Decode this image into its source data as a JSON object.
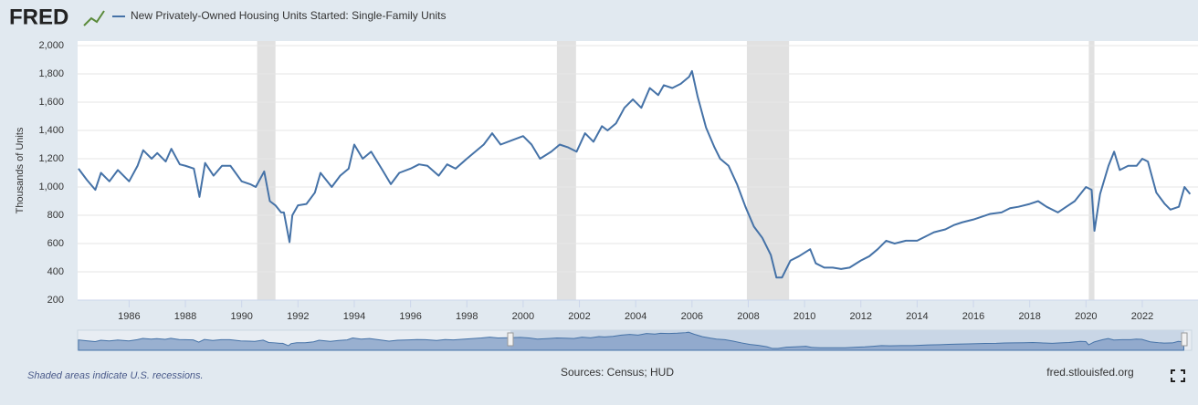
{
  "logo": "FRED",
  "chart_data": {
    "type": "line",
    "title": "New Privately-Owned Housing Units Started: Single-Family Units",
    "y_label": "Thousands of Units",
    "note": "Shaded areas indicate U.S. recessions.",
    "source": "Sources: Census; HUD",
    "site": "fred.stlouisfed.org",
    "xlim": [
      1984.17,
      2023.98
    ],
    "ylim": [
      200,
      2000
    ],
    "xticks": [
      1986,
      1988,
      1990,
      1992,
      1994,
      1996,
      1998,
      2000,
      2002,
      2004,
      2006,
      2008,
      2010,
      2012,
      2014,
      2016,
      2018,
      2020,
      2022
    ],
    "yticks": [
      200,
      400,
      600,
      800,
      {
        "value": 1000,
        "label": "1,000"
      },
      {
        "value": 1200,
        "label": "1,200"
      },
      {
        "value": 1400,
        "label": "1,400"
      },
      {
        "value": 1600,
        "label": "1,600"
      },
      {
        "value": 1800,
        "label": "1,800"
      },
      {
        "value": 2000,
        "label": "2,000"
      }
    ],
    "grid": true,
    "recessions": [
      [
        1990.55,
        1991.2
      ],
      [
        2001.2,
        2001.88
      ],
      [
        2007.95,
        2009.45
      ],
      [
        2020.1,
        2020.3
      ]
    ],
    "recession_color": "#e1e1e1",
    "x": [
      1984.2,
      1984.5,
      1984.8,
      1985.0,
      1985.3,
      1985.6,
      1986.0,
      1986.3,
      1986.5,
      1986.8,
      1987.0,
      1987.3,
      1987.5,
      1987.8,
      1988.0,
      1988.3,
      1988.5,
      1988.7,
      1989.0,
      1989.3,
      1989.6,
      1990.0,
      1990.3,
      1990.5,
      1990.8,
      1991.0,
      1991.2,
      1991.4,
      1991.5,
      1991.7,
      1991.8,
      1992.0,
      1992.3,
      1992.6,
      1992.8,
      1993.0,
      1993.2,
      1993.5,
      1993.8,
      1994.0,
      1994.3,
      1994.6,
      1995.0,
      1995.3,
      1995.6,
      1996.0,
      1996.3,
      1996.6,
      1997.0,
      1997.3,
      1997.6,
      1998.0,
      1998.3,
      1998.6,
      1998.9,
      1999.2,
      1999.6,
      2000.0,
      2000.3,
      2000.6,
      2001.0,
      2001.3,
      2001.6,
      2001.9,
      2002.2,
      2002.5,
      2002.8,
      2003.0,
      2003.3,
      2003.6,
      2003.9,
      2004.2,
      2004.5,
      2004.8,
      2005.0,
      2005.3,
      2005.6,
      2005.9,
      2006.0,
      2006.2,
      2006.5,
      2006.8,
      2007.0,
      2007.3,
      2007.6,
      2007.9,
      2008.2,
      2008.5,
      2008.8,
      2009.0,
      2009.2,
      2009.5,
      2009.8,
      2010.2,
      2010.4,
      2010.7,
      2011.0,
      2011.3,
      2011.6,
      2012.0,
      2012.3,
      2012.6,
      2012.9,
      2013.2,
      2013.6,
      2014.0,
      2014.3,
      2014.6,
      2015.0,
      2015.3,
      2015.6,
      2016.0,
      2016.3,
      2016.6,
      2017.0,
      2017.3,
      2017.6,
      2018.0,
      2018.3,
      2018.6,
      2019.0,
      2019.3,
      2019.6,
      2020.0,
      2020.2,
      2020.3,
      2020.5,
      2020.8,
      2021.0,
      2021.2,
      2021.5,
      2021.8,
      2022.0,
      2022.2,
      2022.5,
      2022.8,
      2023.0,
      2023.3,
      2023.5,
      2023.7
    ],
    "series": [
      {
        "name": "New Privately-Owned Housing Units Started: Single-Family Units",
        "color": "#4572a7",
        "values": [
          1130,
          1050,
          980,
          1100,
          1040,
          1120,
          1040,
          1150,
          1260,
          1200,
          1240,
          1180,
          1270,
          1160,
          1150,
          1130,
          930,
          1170,
          1080,
          1150,
          1150,
          1040,
          1020,
          1000,
          1110,
          900,
          870,
          820,
          820,
          610,
          800,
          870,
          880,
          960,
          1100,
          1050,
          1000,
          1080,
          1130,
          1300,
          1200,
          1250,
          1120,
          1020,
          1100,
          1130,
          1160,
          1150,
          1080,
          1160,
          1130,
          1200,
          1250,
          1300,
          1380,
          1300,
          1330,
          1360,
          1300,
          1200,
          1250,
          1300,
          1280,
          1250,
          1380,
          1320,
          1430,
          1400,
          1450,
          1560,
          1620,
          1560,
          1700,
          1650,
          1720,
          1700,
          1730,
          1780,
          1820,
          1640,
          1420,
          1280,
          1200,
          1150,
          1020,
          860,
          720,
          640,
          520,
          360,
          360,
          480,
          510,
          560,
          460,
          430,
          430,
          420,
          430,
          480,
          510,
          560,
          620,
          600,
          620,
          620,
          650,
          680,
          700,
          730,
          750,
          770,
          790,
          810,
          820,
          850,
          860,
          880,
          900,
          860,
          820,
          860,
          900,
          1000,
          980,
          690,
          950,
          1150,
          1250,
          1120,
          1150,
          1150,
          1200,
          1180,
          960,
          880,
          840,
          860,
          1000,
          950
        ]
      }
    ]
  }
}
